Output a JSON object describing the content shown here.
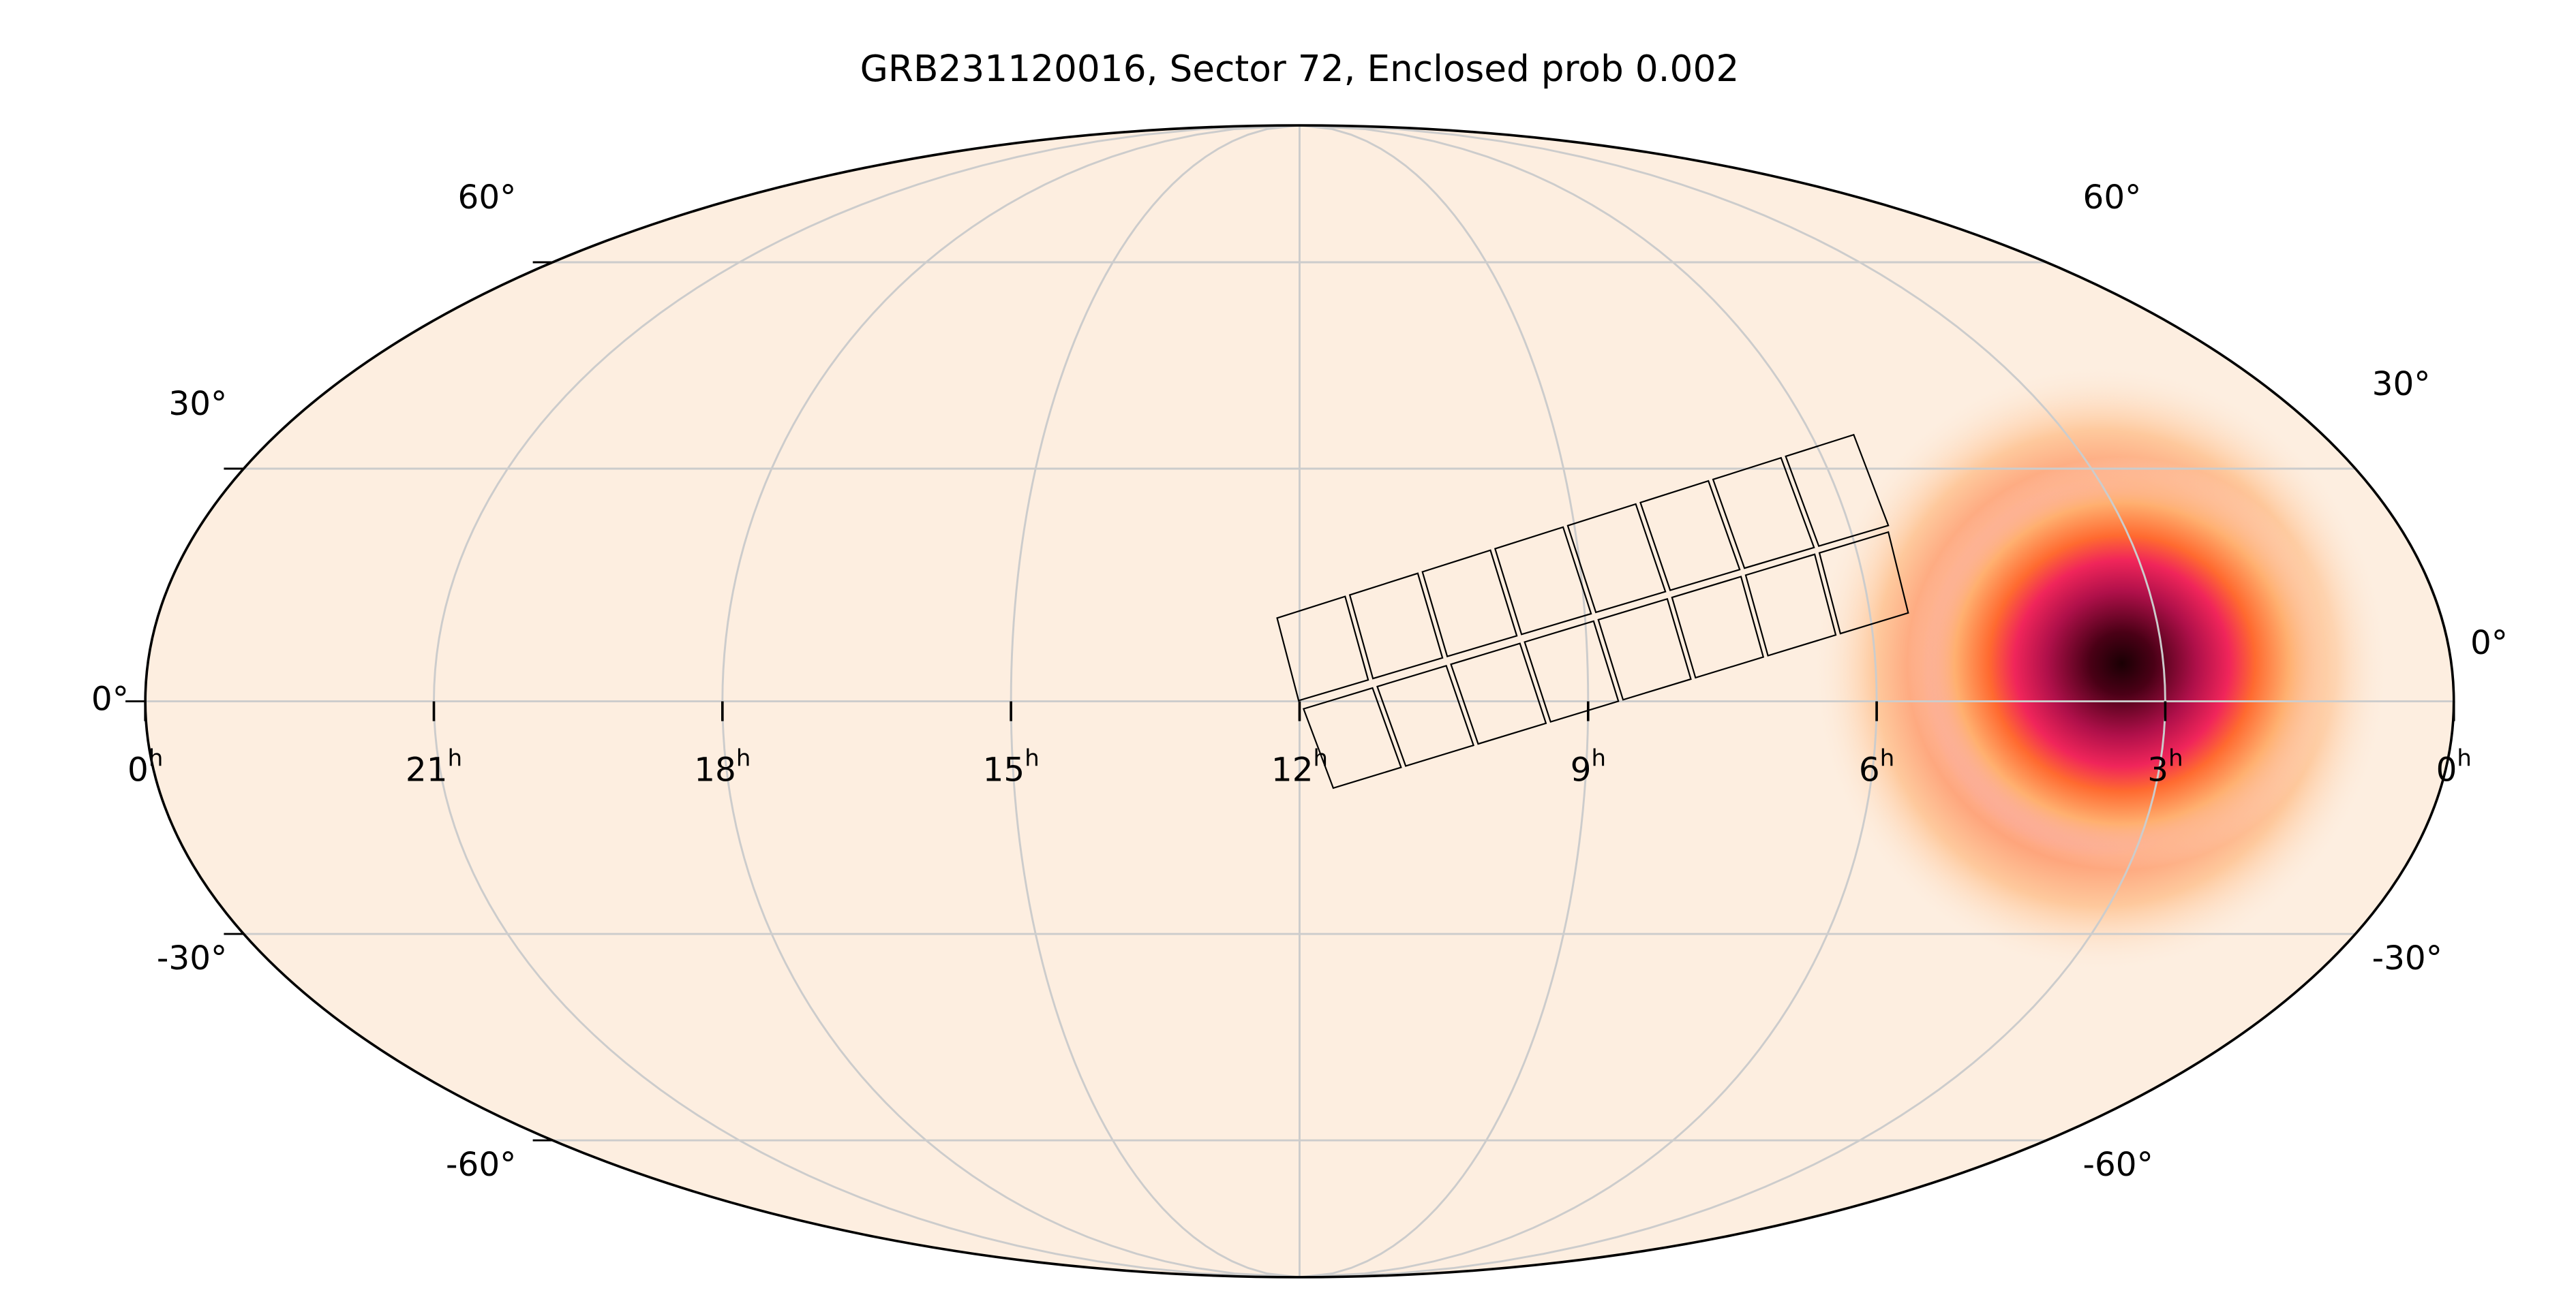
{
  "chart_data": {
    "type": "skymap",
    "projection": "mollweide",
    "title": "GRB231120016, Sector 72, Enclosed prob 0.002",
    "xlim": [
      24,
      0
    ],
    "ylim": [
      -90,
      90
    ],
    "xticks": [
      {
        "value": 24,
        "label": "0"
      },
      21,
      18,
      15,
      12,
      9,
      6,
      3,
      0
    ],
    "x_unit": "h",
    "yticks": [
      {
        "value": -60,
        "label": "-60°"
      },
      {
        "value": -30,
        "label": "-30°"
      },
      {
        "value": 0,
        "label": "0°"
      },
      {
        "value": 30,
        "label": "30°"
      },
      {
        "value": 60,
        "label": "60°"
      }
    ],
    "grid": true,
    "background": "#fdeee0",
    "grid_color": "#cccccc"
  }
}
